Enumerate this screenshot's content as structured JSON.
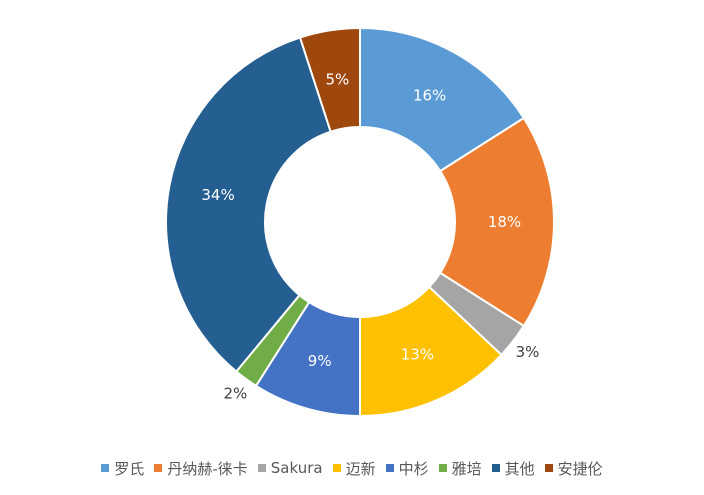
{
  "chart_data": {
    "type": "pie",
    "variant": "doughnut",
    "title": "",
    "legend_position": "bottom",
    "slices": [
      {
        "name": "罗氏",
        "value": 16,
        "label": "16%",
        "color": "#5B9BD5"
      },
      {
        "name": "丹纳赫-徕卡",
        "value": 18,
        "label": "18%",
        "color": "#ED7D31"
      },
      {
        "name": "Sakura",
        "value": 3,
        "label": "3%",
        "color": "#A5A5A5"
      },
      {
        "name": "迈新",
        "value": 13,
        "label": "13%",
        "color": "#FFC000"
      },
      {
        "name": "中杉",
        "value": 9,
        "label": "9%",
        "color": "#4472C4"
      },
      {
        "name": "雅培",
        "value": 2,
        "label": "2%",
        "color": "#70AD47"
      },
      {
        "name": "其他",
        "value": 34,
        "label": "34%",
        "color": "#255E91"
      },
      {
        "name": "安捷伦",
        "value": 5,
        "label": "5%",
        "color": "#9E480E"
      }
    ]
  }
}
